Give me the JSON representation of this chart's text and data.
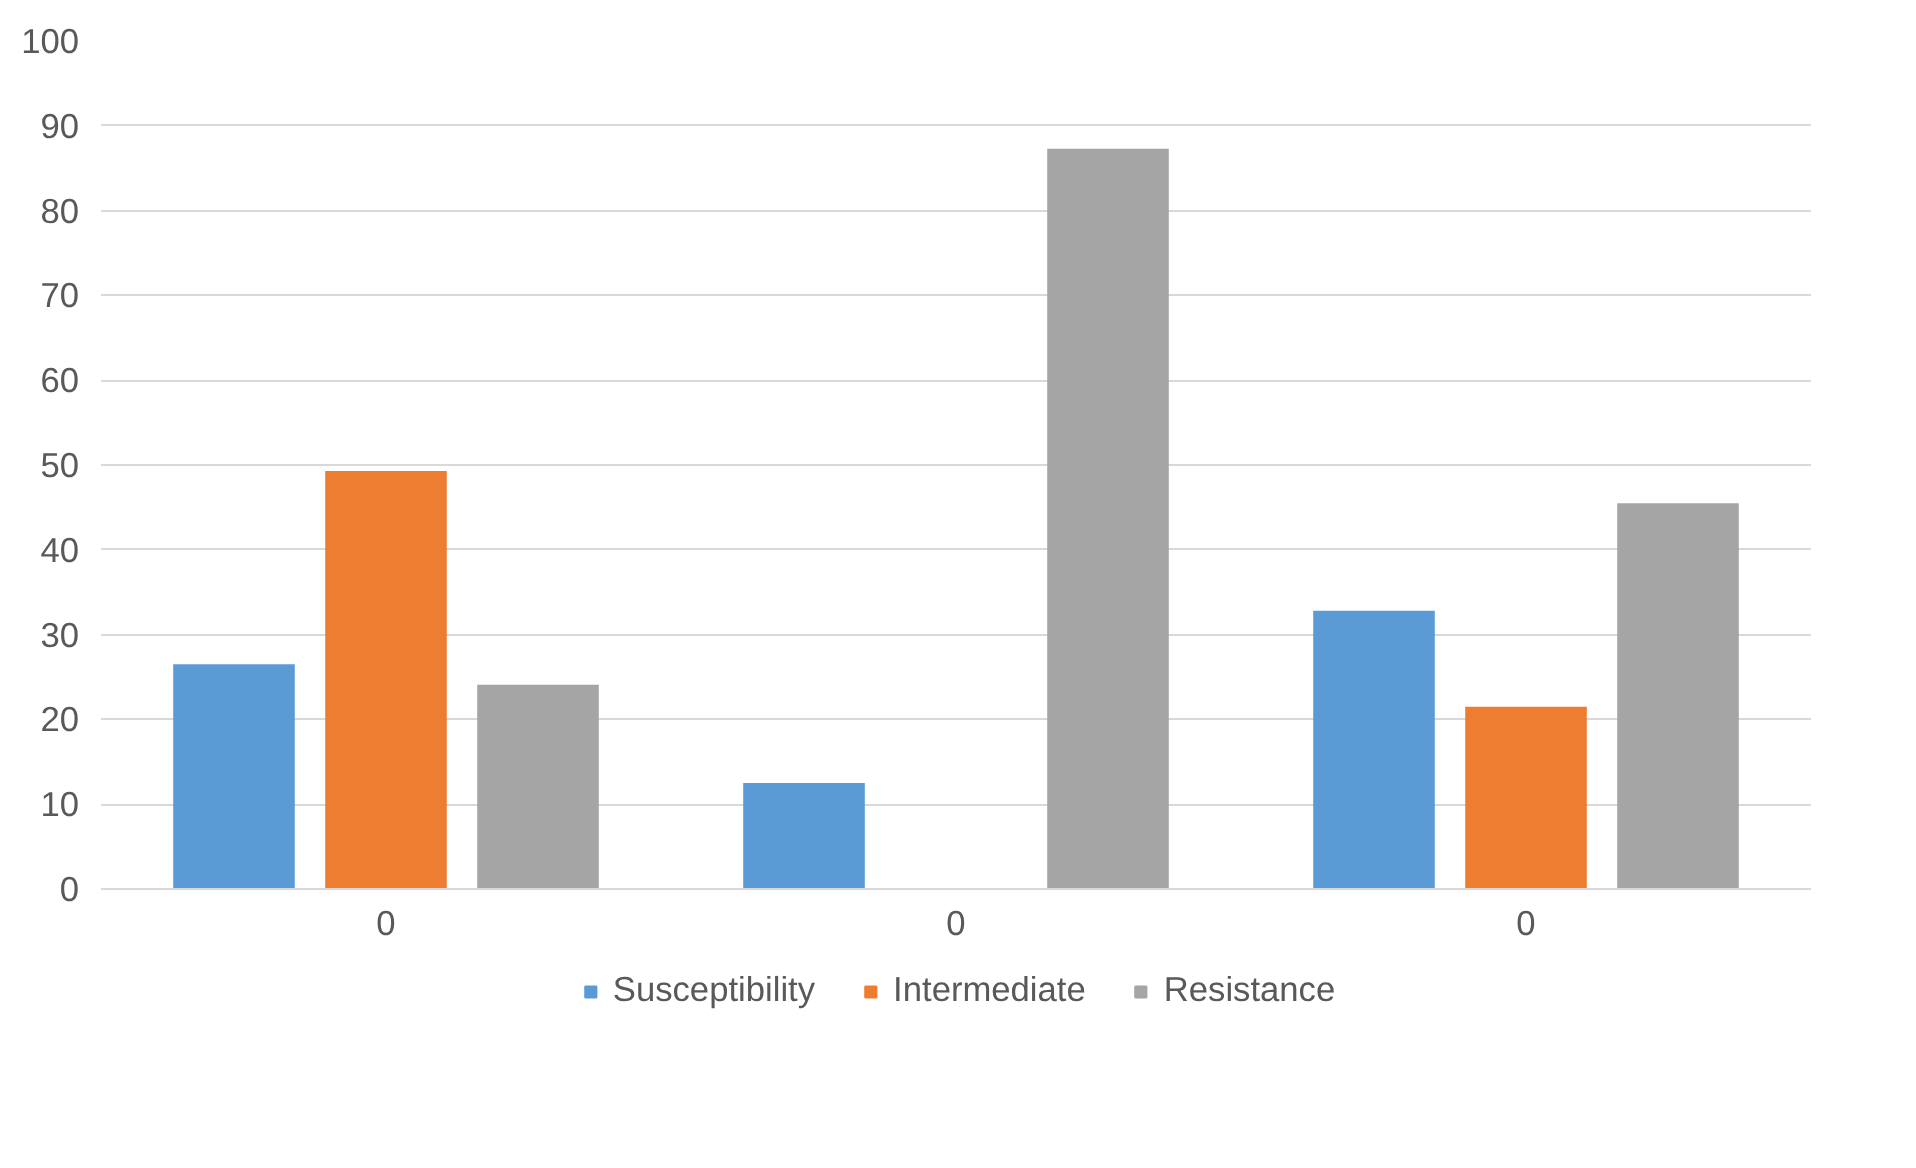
{
  "chart_data": {
    "type": "bar",
    "categories": [
      "0",
      "0",
      "0"
    ],
    "series": [
      {
        "name": "Susceptibility",
        "color": "#5b9bd5",
        "values": [
          26.5,
          12.5,
          32.8
        ]
      },
      {
        "name": "Intermediate",
        "color": "#ed7d31",
        "values": [
          49.3,
          0,
          21.5
        ]
      },
      {
        "name": "Resistance",
        "color": "#a5a5a5",
        "values": [
          24.1,
          87.3,
          45.5
        ]
      }
    ],
    "ylim": [
      0,
      100
    ],
    "yticks": [
      0,
      10,
      20,
      30,
      40,
      50,
      60,
      70,
      80,
      90,
      100
    ],
    "grid": "y",
    "legend": "bottom"
  }
}
